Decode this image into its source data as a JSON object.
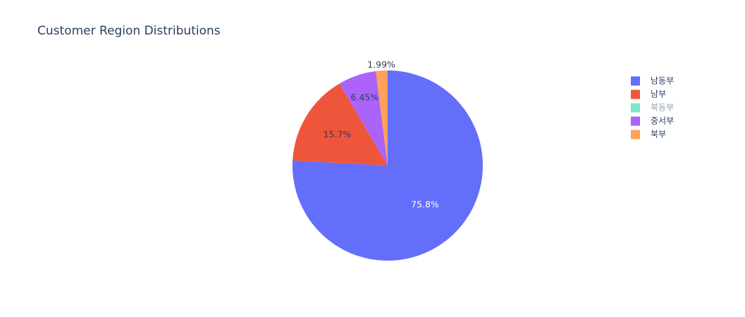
{
  "chart_data": {
    "type": "pie",
    "title": "Customer Region Distributions",
    "start_angle_deg": 90,
    "direction": "clockwise",
    "slices": [
      {
        "label": "남동부",
        "value": 75.8,
        "text": "75.8%",
        "color": "#636efa",
        "text_color": "#ffffff",
        "text_position": "inside",
        "legend_dimmed": false
      },
      {
        "label": "남부",
        "value": 15.7,
        "text": "15.7%",
        "color": "#ef553b",
        "text_color": "#2a3f5f",
        "text_position": "inside",
        "legend_dimmed": false
      },
      {
        "label": "북동부",
        "value": 0.0,
        "text": "",
        "color": "#00cc96",
        "text_color": "#2a3f5f",
        "text_position": "none",
        "legend_dimmed": true
      },
      {
        "label": "중서부",
        "value": 6.45,
        "text": "6.45%",
        "color": "#ab63fa",
        "text_color": "#2a3f5f",
        "text_position": "inside",
        "legend_dimmed": false
      },
      {
        "label": "북부",
        "value": 1.99,
        "text": "1.99%",
        "color": "#ffa15a",
        "text_color": "#2a3f5f",
        "text_position": "outside",
        "legend_dimmed": false
      }
    ],
    "legend": {
      "placement": "top-right",
      "text_color": "#2a3f5f"
    }
  }
}
